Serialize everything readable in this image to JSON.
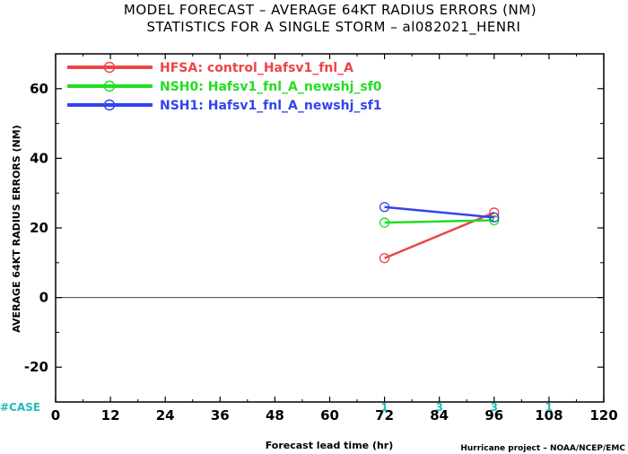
{
  "chart_data": {
    "type": "line",
    "title_line1": "MODEL FORECAST – AVERAGE 64KT RADIUS ERRORS (NM)",
    "title_line2": "STATISTICS FOR A SINGLE STORM – al082021_HENRI",
    "xlabel": "Forecast lead time (hr)",
    "ylabel": "AVERAGE 64KT RADIUS ERRORS (NM)",
    "xlim": [
      0,
      120
    ],
    "ylim": [
      -30,
      70
    ],
    "x_ticks": [
      "0",
      "12",
      "24",
      "36",
      "48",
      "60",
      "72",
      "84",
      "96",
      "108",
      "120"
    ],
    "y_ticks": [
      "-20",
      "0",
      "20",
      "40",
      "60"
    ],
    "case_label": "#CASE",
    "case_counts": [
      {
        "x": 72,
        "label": "1"
      },
      {
        "x": 84,
        "label": "3"
      },
      {
        "x": 96,
        "label": "3"
      },
      {
        "x": 108,
        "label": "1"
      }
    ],
    "credit": "Hurricane project – NOAA/NCEP/EMC",
    "legend_position": "top-left",
    "grid": false,
    "series": [
      {
        "name": "HFSA: control_Hafsv1_fnl_A",
        "color": "#ee4444",
        "x": [
          72,
          96
        ],
        "y": [
          11.3,
          24.4
        ]
      },
      {
        "name": "NSH0: Hafsv1_fnl_A_newshj_sf0",
        "color": "#22dd22",
        "x": [
          72,
          96
        ],
        "y": [
          21.5,
          22.2
        ]
      },
      {
        "name": "NSH1: Hafsv1_fnl_A_newshj_sf1",
        "color": "#3344ee",
        "x": [
          72,
          96
        ],
        "y": [
          26.0,
          23.0
        ]
      }
    ]
  }
}
